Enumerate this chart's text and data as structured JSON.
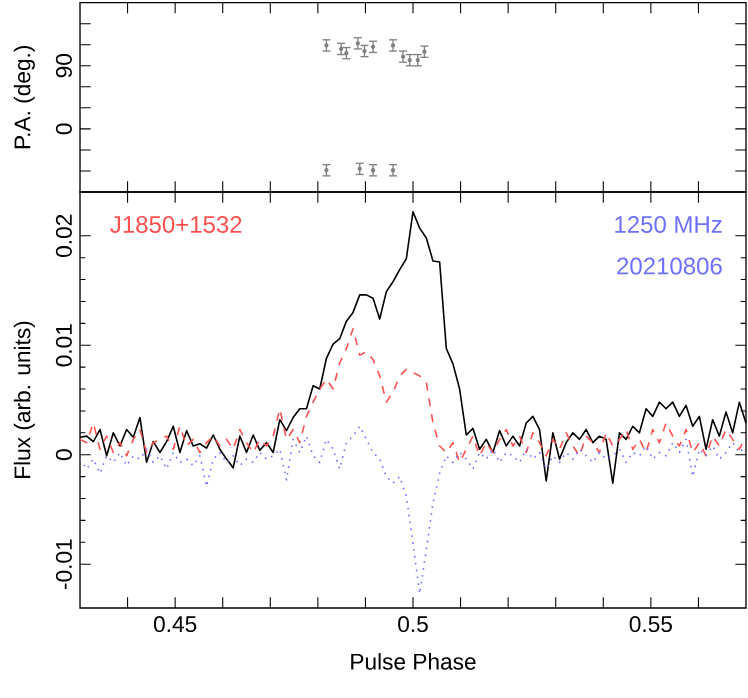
{
  "chart_data": [
    {
      "type": "scatter",
      "ylabel": "P.A. (deg.)",
      "marker": "circle",
      "tick_labels": "y",
      "xlim": [
        0.43,
        0.57
      ],
      "ylim": [
        -90,
        180
      ],
      "xticks": [
        {
          "value": 0.44,
          "label": null
        },
        {
          "value": 0.45,
          "label": null
        },
        {
          "value": 0.46,
          "label": null
        },
        {
          "value": 0.47,
          "label": null
        },
        {
          "value": 0.48,
          "label": null
        },
        {
          "value": 0.49,
          "label": null
        },
        {
          "value": 0.5,
          "label": null
        },
        {
          "value": 0.51,
          "label": null
        },
        {
          "value": 0.52,
          "label": null
        },
        {
          "value": 0.53,
          "label": null
        },
        {
          "value": 0.54,
          "label": null
        },
        {
          "value": 0.55,
          "label": null
        },
        {
          "value": 0.56,
          "label": null
        }
      ],
      "yticks": [
        {
          "value": -60,
          "label": null
        },
        {
          "value": -30,
          "label": null
        },
        0,
        {
          "value": 30,
          "label": null
        },
        {
          "value": 60,
          "label": null
        },
        90,
        {
          "value": 120,
          "label": null
        },
        {
          "value": 150,
          "label": null
        }
      ],
      "series": [
        {
          "color": "#808080",
          "x": [
            0.4818,
            0.4849,
            0.486,
            0.4884,
            0.4898,
            0.4916,
            0.4958,
            0.4979,
            0.4993,
            0.501,
            0.5024,
            0.4818,
            0.4888,
            0.4916,
            0.4958
          ],
          "values": [
            119,
            114,
            108,
            122,
            111,
            117,
            119,
            103,
            98,
            98,
            110,
            -59,
            -57,
            -59,
            -59
          ],
          "errors": [
            8,
            8,
            8,
            8,
            8,
            8,
            8,
            8,
            8,
            8,
            8,
            8,
            8,
            8,
            8
          ]
        }
      ]
    },
    {
      "type": "line",
      "xlabel": "Pulse Phase",
      "ylabel": "Flux (arb. units)",
      "marker": "none",
      "xlim": [
        0.43,
        0.57
      ],
      "ylim": [
        -0.014,
        0.024
      ],
      "xticks": [
        {
          "value": 0.44,
          "label": null
        },
        0.45,
        {
          "value": 0.46,
          "label": null
        },
        {
          "value": 0.47,
          "label": null
        },
        {
          "value": 0.48,
          "label": null
        },
        {
          "value": 0.49,
          "label": null
        },
        0.5,
        {
          "value": 0.51,
          "label": null
        },
        {
          "value": 0.52,
          "label": null
        },
        {
          "value": 0.53,
          "label": null
        },
        {
          "value": 0.54,
          "label": null
        },
        0.55,
        {
          "value": 0.56,
          "label": null
        }
      ],
      "yticks": [
        -0.01,
        0,
        0.01,
        0.02
      ],
      "annotations": [
        "J1850+1532",
        "1250 MHz",
        "20210806"
      ],
      "x": [
        0.43,
        0.4314,
        0.4328,
        0.4342,
        0.4356,
        0.437,
        0.4384,
        0.4398,
        0.4412,
        0.4426,
        0.444,
        0.4454,
        0.4468,
        0.4482,
        0.4496,
        0.451,
        0.4524,
        0.4538,
        0.4552,
        0.4566,
        0.458,
        0.4594,
        0.4608,
        0.4622,
        0.4636,
        0.465,
        0.4664,
        0.4678,
        0.4692,
        0.4706,
        0.472,
        0.4734,
        0.4748,
        0.4762,
        0.4776,
        0.479,
        0.4804,
        0.4818,
        0.4832,
        0.4846,
        0.486,
        0.4874,
        0.4888,
        0.4902,
        0.4916,
        0.493,
        0.4944,
        0.4958,
        0.4972,
        0.4986,
        0.5,
        0.5014,
        0.5028,
        0.5042,
        0.5056,
        0.507,
        0.5084,
        0.5098,
        0.5112,
        0.5126,
        0.514,
        0.5154,
        0.5168,
        0.5182,
        0.5196,
        0.521,
        0.5224,
        0.5238,
        0.5252,
        0.5266,
        0.528,
        0.5294,
        0.5308,
        0.5322,
        0.5336,
        0.535,
        0.5364,
        0.5378,
        0.5392,
        0.5406,
        0.542,
        0.5434,
        0.5448,
        0.5462,
        0.5476,
        0.549,
        0.5504,
        0.5518,
        0.5532,
        0.5546,
        0.556,
        0.5574,
        0.5588,
        0.5602,
        0.5616,
        0.563,
        0.5644,
        0.5658,
        0.5672,
        0.5686,
        0.57
      ],
      "series": [
        {
          "color": "#000000",
          "line_style": "solid",
          "values": [
            0.0016,
            0.0017,
            0.0012,
            0.0023,
            -0.0001,
            0.002,
            0.0008,
            0.0023,
            0.0016,
            0.0034,
            -0.0007,
            0.0012,
            0.0002,
            0.0012,
            0.0026,
            0.0002,
            0.0022,
            0.0008,
            0.001,
            0.0006,
            0.0018,
            0.0005,
            -0.0004,
            -0.0012,
            0.0017,
            0.0002,
            0.0018,
            0.0004,
            0.0011,
            0.0002,
            0.0032,
            0.0022,
            0.0034,
            0.0042,
            0.0042,
            0.0063,
            0.006,
            0.0088,
            0.0101,
            0.0106,
            0.0122,
            0.013,
            0.0146,
            0.0146,
            0.0143,
            0.0124,
            0.0149,
            0.0158,
            0.0169,
            0.0179,
            0.0222,
            0.0207,
            0.0198,
            0.0177,
            0.0176,
            0.0097,
            0.0083,
            0.006,
            0.0018,
            0.0024,
            0.0005,
            0.0014,
            0.0002,
            0.0022,
            0.0008,
            0.0017,
            0.0008,
            0.0029,
            0.0035,
            0.0023,
            -0.0024,
            0.002,
            -0.0004,
            0.0011,
            0.002,
            0.0014,
            0.0023,
            0.0011,
            0.0017,
            0.0014,
            -0.0026,
            0.002,
            0.0014,
            0.0026,
            0.002,
            0.0042,
            0.0035,
            0.0048,
            0.0042,
            0.0048,
            0.0035,
            0.0045,
            0.0026,
            0.0035,
            0.0005,
            0.0032,
            0.0017,
            0.0039,
            0.002,
            0.0048,
            0.0029
          ]
        },
        {
          "color": "#ff5050",
          "line_style": "dashed",
          "values": [
            0.0014,
            0.0011,
            0.0029,
            0.0005,
            0.0017,
            0.0002,
            0.0011,
            -0.0001,
            0.0014,
            0.0023,
            0.0002,
            0.0011,
            0.0014,
            0.0017,
            0.0005,
            0.0026,
            0.0008,
            0.0014,
            0.0002,
            0.0011,
            0.0017,
            0.0008,
            0.0014,
            0.0005,
            0.0023,
            0.0011,
            0.0002,
            0.0014,
            0.0008,
            0.0017,
            0.0042,
            0.0014,
            0.0023,
            0.0011,
            0.0035,
            0.0048,
            0.006,
            0.0069,
            0.006,
            0.0084,
            0.0097,
            0.0115,
            0.0091,
            0.0094,
            0.0087,
            0.0072,
            0.0048,
            0.0057,
            0.0072,
            0.0078,
            0.0075,
            0.0072,
            0.0066,
            0.0029,
            0.0008,
            0.0002,
            0.0011,
            -0.0007,
            0.0005,
            0.0017,
            -0.0001,
            0.0011,
            0.0002,
            0.0014,
            0.0023,
            0.0008,
            0.0017,
            0.0002,
            0.002,
            0.0011,
            -0.0001,
            0.0014,
            0.0005,
            0.002,
            0.0008,
            -0.0001,
            0.0017,
            0.0011,
            0.0002,
            0.002,
            0.0008,
            0.0014,
            0.0023,
            0.0005,
            0.0014,
            0.0002,
            0.0023,
            0.0011,
            0.0029,
            0.0017,
            0.0008,
            0.0023,
            0.0002,
            0.0011,
            -0.0001,
            0.0017,
            0.0008,
            0.0023,
            0.0014,
            0.0005,
            0.0017
          ]
        },
        {
          "color": "#7070ff",
          "line_style": "dotted",
          "values": [
            -0.0004,
            -0.0013,
            -0.0004,
            -0.0017,
            -0.0001,
            -0.0007,
            0.0002,
            -0.001,
            -0.0001,
            -0.0004,
            0.0005,
            -0.0007,
            -0.0001,
            -0.0013,
            0.0002,
            -0.0007,
            -0.0004,
            -0.001,
            -0.0001,
            -0.0029,
            -0.0004,
            0.0002,
            -0.0007,
            -0.0001,
            -0.001,
            -0.0004,
            -0.0007,
            0.0002,
            -0.0004,
            -0.0001,
            0.0005,
            -0.0023,
            0.0014,
            0.0002,
            0.0017,
            -0.0001,
            -0.0007,
            0.0014,
            0.0005,
            -0.0013,
            0.0011,
            0.0017,
            0.0026,
            0.0014,
            0.0002,
            -0.0004,
            -0.002,
            -0.0026,
            -0.002,
            -0.0038,
            -0.0081,
            -0.0127,
            -0.0087,
            -0.0044,
            -0.0017,
            -0.0001,
            -0.0007,
            0.0002,
            -0.0004,
            -0.0013,
            0.0002,
            -0.0004,
            0.0005,
            -0.0007,
            0.0002,
            -0.0001,
            -0.0007,
            0.0005,
            -0.0004,
            0.0002,
            -0.0013,
            -0.0001,
            -0.0007,
            0.0002,
            -0.0004,
            0.0005,
            -0.0001,
            -0.0007,
            0.0002,
            -0.0004,
            -0.0001,
            0.0005,
            -0.0007,
            0.0002,
            -0.0001,
            0.0008,
            -0.0004,
            0.0002,
            -0.0001,
            0.0011,
            0.0002,
            0.0014,
            -0.002,
            0.0005,
            -0.0001,
            0.0008,
            -0.0004,
            0.0002,
            0.0011,
            0.0002,
            0.0008
          ]
        }
      ]
    }
  ]
}
